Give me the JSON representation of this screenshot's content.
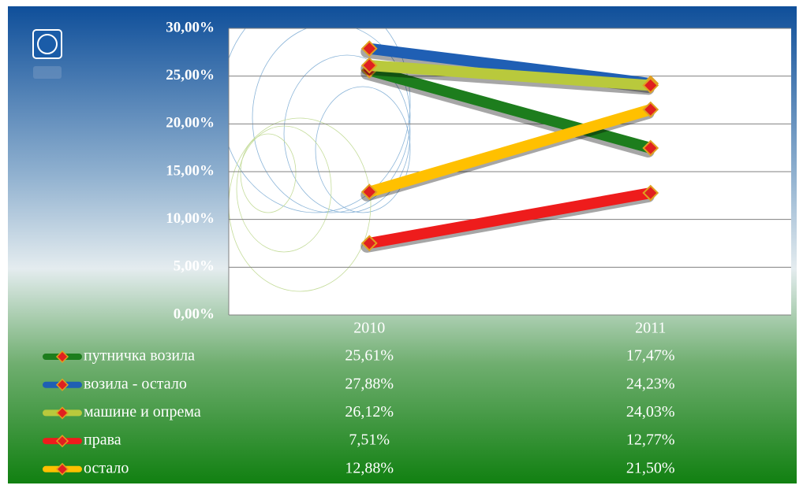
{
  "chart_data": {
    "type": "line",
    "categories": [
      "2010",
      "2011"
    ],
    "series": [
      {
        "name": "путничка возила",
        "color": "#1d7d1d",
        "values": [
          25.61,
          17.47
        ],
        "value_labels": [
          "25,61%",
          "17,47%"
        ]
      },
      {
        "name": "возила - остало",
        "color": "#1f5fb4",
        "values": [
          27.88,
          24.23
        ],
        "value_labels": [
          "27,88%",
          "24,23%"
        ]
      },
      {
        "name": "машине и опрема",
        "color": "#b9c93c",
        "values": [
          26.12,
          24.03
        ],
        "value_labels": [
          "26,12%",
          "24,03%"
        ]
      },
      {
        "name": "права",
        "color": "#ee1c1c",
        "values": [
          7.51,
          12.77
        ],
        "value_labels": [
          "7,51%",
          "12,77%"
        ]
      },
      {
        "name": "остало",
        "color": "#ffc000",
        "values": [
          12.88,
          21.5
        ],
        "value_labels": [
          "12,88%",
          "21,50%"
        ]
      }
    ],
    "ylim": [
      0,
      30
    ],
    "yticks": [
      {
        "value": 0,
        "label": "0,00%"
      },
      {
        "value": 5,
        "label": "5,00%"
      },
      {
        "value": 10,
        "label": "10,00%"
      },
      {
        "value": 15,
        "label": "15,00%"
      },
      {
        "value": 20,
        "label": "20,00%"
      },
      {
        "value": 25,
        "label": "25,00%"
      },
      {
        "value": 30,
        "label": "30,00%"
      }
    ],
    "grid": true,
    "data_table": true
  }
}
